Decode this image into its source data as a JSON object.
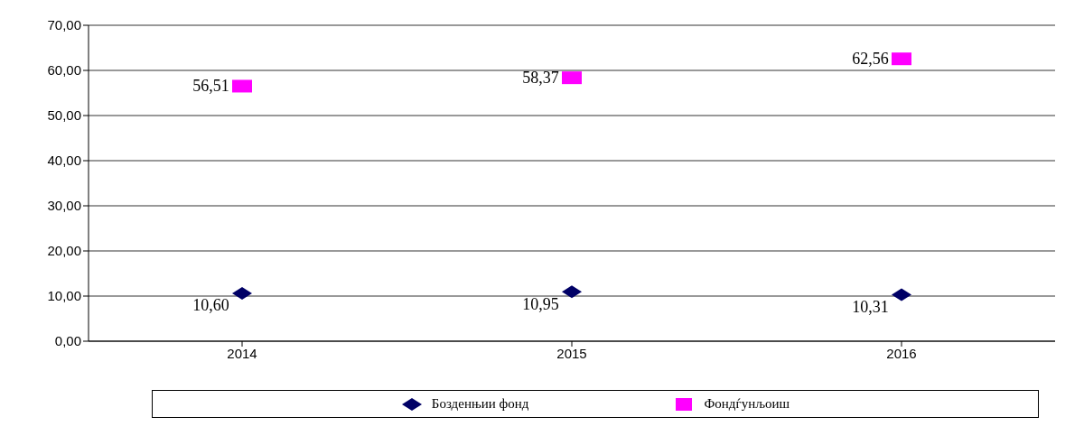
{
  "chart_data": {
    "type": "scatter",
    "categories": [
      "2014",
      "2015",
      "2016"
    ],
    "series": [
      {
        "name": "Бозденњии фонд",
        "color": "#000066",
        "marker": "diamond",
        "values": [
          10.6,
          10.95,
          10.31
        ],
        "value_labels": [
          "10,60",
          "10,95",
          "10,31"
        ]
      },
      {
        "name": "Фондѓунљоиш",
        "color": "#ff00ff",
        "marker": "square",
        "values": [
          56.51,
          58.37,
          62.56
        ],
        "value_labels": [
          "56,51",
          "58,37",
          "62,56"
        ]
      }
    ],
    "ylim": [
      0,
      70
    ],
    "yticks": [
      {
        "value": 0,
        "label": "0,00"
      },
      {
        "value": 10,
        "label": "10,00"
      },
      {
        "value": 20,
        "label": "20,00"
      },
      {
        "value": 30,
        "label": "30,00"
      },
      {
        "value": 40,
        "label": "40,00"
      },
      {
        "value": 50,
        "label": "50,00"
      },
      {
        "value": 60,
        "label": "60,00"
      },
      {
        "value": 70,
        "label": "70,00"
      }
    ],
    "grid": "y",
    "legend": "bottom"
  }
}
